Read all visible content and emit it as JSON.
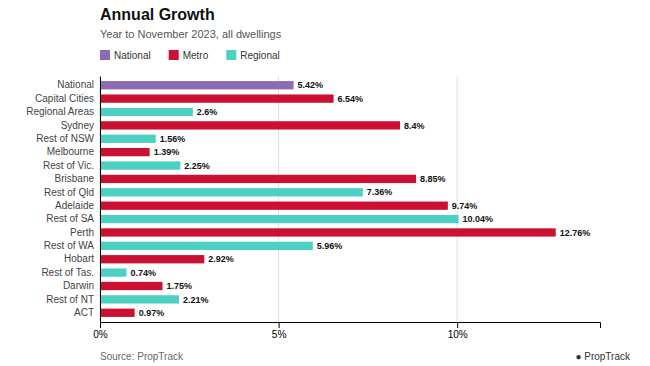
{
  "chart_data": {
    "type": "bar",
    "orientation": "horizontal",
    "title": "Annual Growth",
    "subtitle": "Year to November 2023, all dwellings",
    "source": "Source: PropTrack",
    "annotations": [
      "● PropTrack"
    ],
    "categories": [
      "National",
      "Capital Cities",
      "Regional Areas",
      "Sydney",
      "Rest of NSW",
      "Melbourne",
      "Rest of Vic.",
      "Brisbane",
      "Rest of Qld",
      "Adelaide",
      "Rest of SA",
      "Perth",
      "Rest of WA",
      "Hobart",
      "Rest of Tas.",
      "Darwin",
      "Rest of NT",
      "ACT"
    ],
    "values": [
      5.42,
      6.54,
      2.6,
      8.4,
      1.56,
      1.39,
      2.25,
      8.85,
      7.36,
      9.74,
      10.04,
      12.76,
      5.96,
      2.92,
      0.74,
      1.75,
      2.21,
      0.97
    ],
    "value_labels": [
      "5.42%",
      "6.54%",
      "2.6%",
      "8.4%",
      "1.56%",
      "1.39%",
      "2.25%",
      "8.85%",
      "7.36%",
      "9.74%",
      "10.04%",
      "12.76%",
      "5.96%",
      "2.92%",
      "0.74%",
      "1.75%",
      "2.21%",
      "0.97%"
    ],
    "data_labels": true,
    "colors": [
      "#8B6BB1",
      "#CC1033",
      "#4DD0C4",
      "#CC1033",
      "#4DD0C4",
      "#CC1033",
      "#4DD0C4",
      "#CC1033",
      "#4DD0C4",
      "#CC1033",
      "#4DD0C4",
      "#CC1033",
      "#4DD0C4",
      "#CC1033",
      "#4DD0C4",
      "#CC1033",
      "#4DD0C4",
      "#CC1033"
    ],
    "legend": "top left",
    "legend_entries": [
      {
        "label": "National",
        "color": "#8B6BB1"
      },
      {
        "label": "Metro",
        "color": "#CC1033"
      },
      {
        "label": "Regional",
        "color": "#4DD0C4"
      }
    ],
    "xlim": [
      0,
      14.0
    ],
    "xticks": [
      {
        "value": 0,
        "label": "0%"
      },
      {
        "value": 5,
        "label": "5%"
      },
      {
        "value": 10,
        "label": "10%"
      }
    ],
    "grid": true
  }
}
